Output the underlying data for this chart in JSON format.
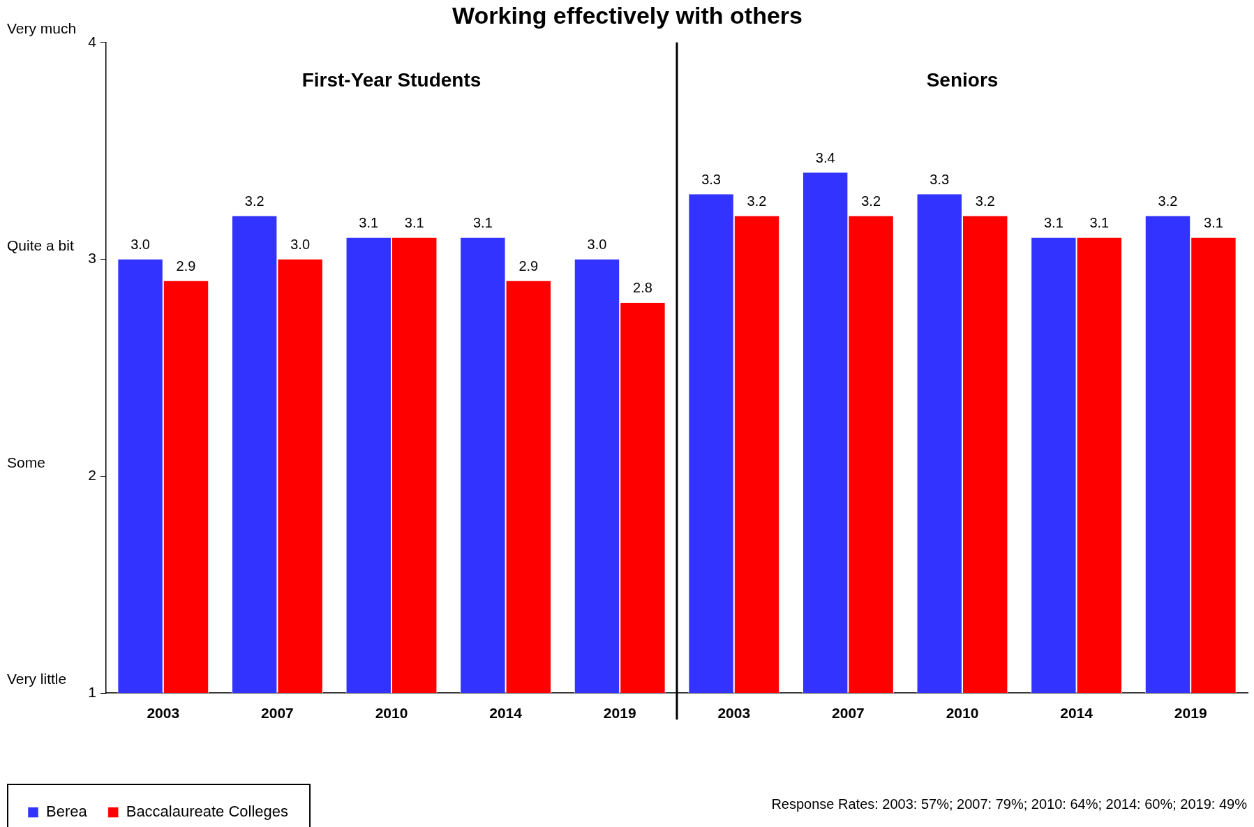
{
  "chart_data": {
    "type": "bar",
    "title": "Working effectively with others",
    "categories": [
      "2003",
      "2007",
      "2010",
      "2014",
      "2019",
      "2003",
      "2007",
      "2010",
      "2014",
      "2019"
    ],
    "series": [
      {
        "name": "Berea",
        "color": "#3333ff",
        "values": [
          3.0,
          3.2,
          3.1,
          3.1,
          3.0,
          3.3,
          3.4,
          3.3,
          3.1,
          3.2
        ],
        "value_labels": [
          "3.0",
          "3.2",
          "3.1",
          "3.1",
          "3.0",
          "3.3",
          "3.4",
          "3.3",
          "3.1",
          "3.2"
        ]
      },
      {
        "name": "Baccalaureate Colleges",
        "color": "#ff0000",
        "values": [
          2.9,
          3.0,
          3.1,
          2.9,
          2.8,
          3.2,
          3.2,
          3.2,
          3.1,
          3.1
        ],
        "value_labels": [
          "2.9",
          "3.0",
          "3.1",
          "2.9",
          "2.8",
          "3.2",
          "3.2",
          "3.2",
          "3.1",
          "3.1"
        ]
      }
    ],
    "ylim": [
      1,
      4
    ],
    "yticks": [
      1,
      2,
      3,
      4
    ],
    "grid": false,
    "legend": "bottom left",
    "annotations": [
      "Very much",
      "Quite a bit",
      "Some",
      "Very little",
      "First-Year Students",
      "Seniors",
      "Response Rates: 2003: 57%; 2007: 79%; 2010: 64%; 2014: 60%; 2019: 49%"
    ]
  }
}
